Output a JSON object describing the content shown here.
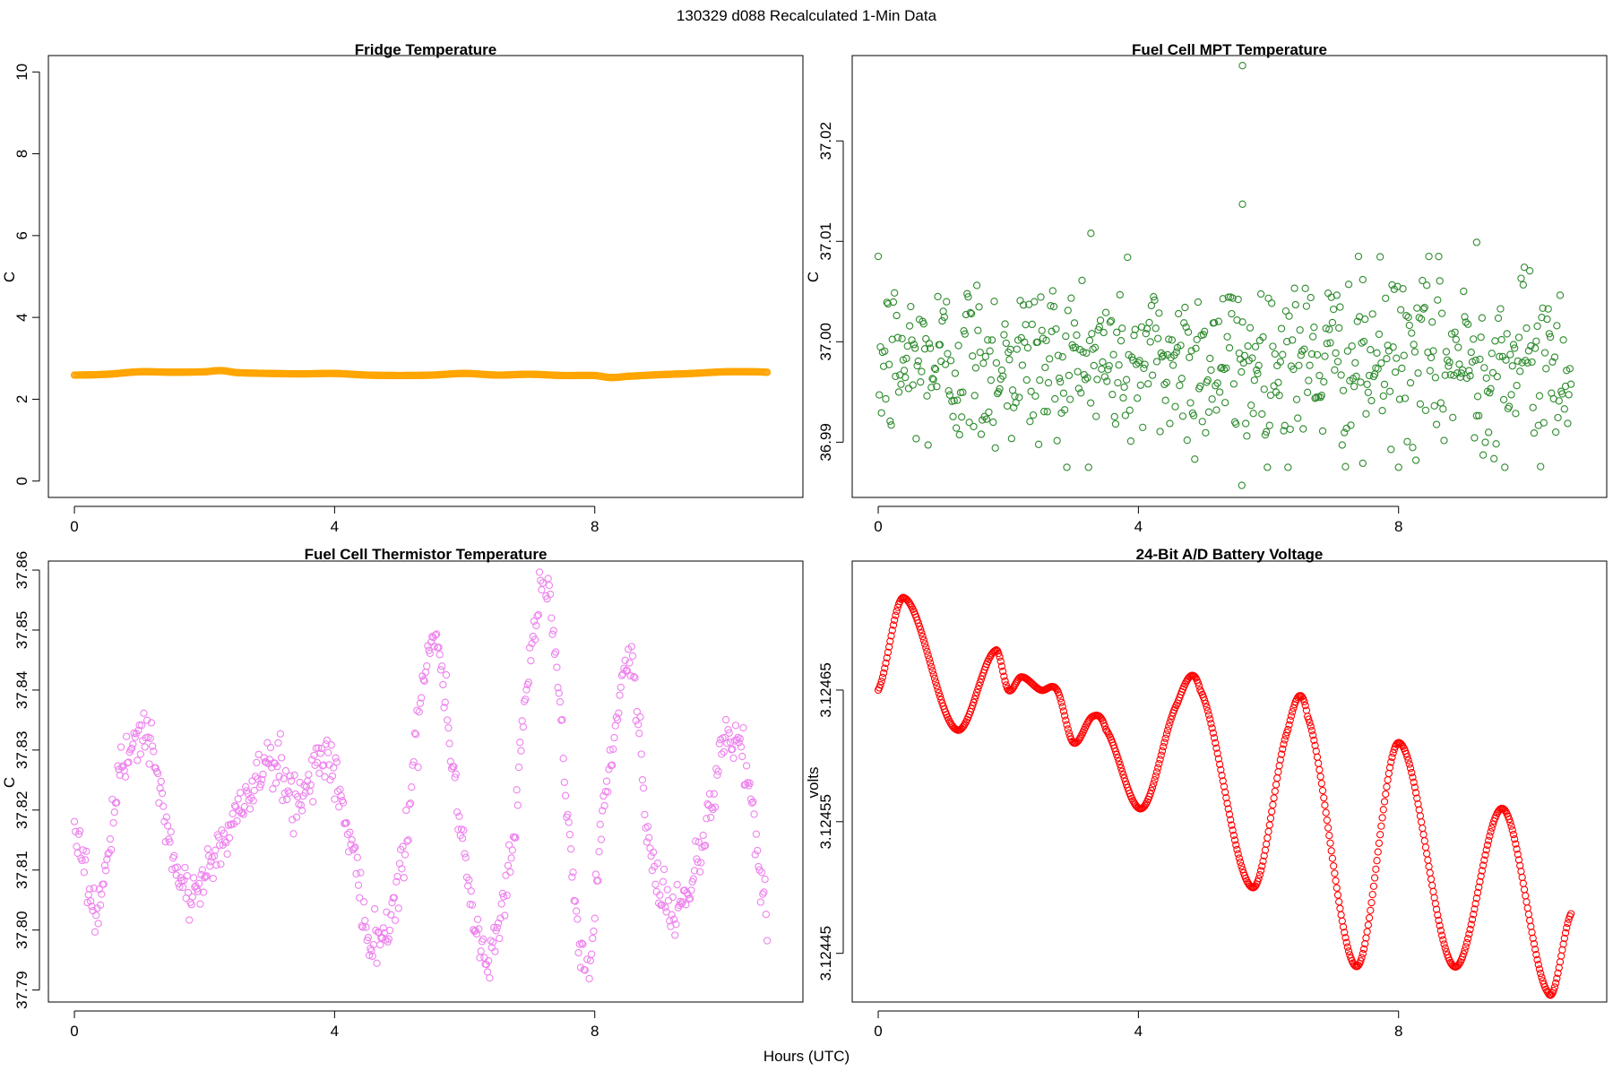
{
  "figure": {
    "title": "130329   d088   Recalculated 1-Min Data",
    "xlabel": "Hours (UTC)"
  },
  "chart_data": [
    {
      "id": "fridge",
      "type": "scatter",
      "title": "Fridge Temperature",
      "xlabel": "Hours (UTC)",
      "ylabel": "C",
      "color": "#FFA500",
      "xlim": [
        -0.4,
        11.2
      ],
      "ylim": [
        -0.4,
        10.4
      ],
      "xticks": [
        0,
        4,
        8
      ],
      "yticks": [
        0,
        2,
        4,
        6,
        8,
        10
      ],
      "ytick_labels": [
        "0",
        "2",
        "4",
        "6",
        "8",
        "10"
      ],
      "x": [
        0.0,
        0.5,
        1.0,
        1.5,
        2.0,
        2.25,
        2.5,
        3.0,
        3.5,
        4.0,
        4.5,
        5.0,
        5.5,
        6.0,
        6.5,
        7.0,
        7.5,
        8.0,
        8.25,
        8.5,
        9.0,
        9.5,
        10.0,
        10.5,
        10.65
      ],
      "y": [
        2.59,
        2.61,
        2.67,
        2.66,
        2.67,
        2.7,
        2.65,
        2.63,
        2.62,
        2.63,
        2.59,
        2.58,
        2.59,
        2.63,
        2.59,
        2.61,
        2.58,
        2.58,
        2.53,
        2.56,
        2.6,
        2.63,
        2.67,
        2.67,
        2.66
      ]
    },
    {
      "id": "mpt",
      "type": "scatter",
      "title": "Fuel Cell MPT Temperature",
      "xlabel": "Hours (UTC)",
      "ylabel": "C",
      "color": "#2E8B2E",
      "xlim": [
        -0.4,
        11.2
      ],
      "ylim": [
        36.9845,
        37.0285
      ],
      "xticks": [
        0,
        4,
        8
      ],
      "yticks": [
        36.99,
        37.0,
        37.01,
        37.02
      ],
      "ytick_labels": [
        "36.99",
        "37.00",
        "37.01",
        "37.02"
      ],
      "mean": 36.998,
      "sd": 0.0045,
      "n": 640,
      "outliers": [
        {
          "x": 5.6,
          "y": 37.0275
        },
        {
          "x": 5.6,
          "y": 37.0137
        },
        {
          "x": 3.27,
          "y": 37.0108
        },
        {
          "x": 9.2,
          "y": 37.0099
        },
        {
          "x": 5.59,
          "y": 36.9857
        },
        {
          "x": 7.45,
          "y": 36.9879
        }
      ]
    },
    {
      "id": "thermistor",
      "type": "scatter",
      "title": "Fuel Cell Thermistor Temperature",
      "xlabel": "Hours (UTC)",
      "ylabel": "C",
      "color": "#EE82EE",
      "xlim": [
        -0.4,
        11.2
      ],
      "ylim": [
        37.788,
        37.8615
      ],
      "xticks": [
        0,
        4,
        8
      ],
      "yticks": [
        37.79,
        37.8,
        37.81,
        37.82,
        37.83,
        37.84,
        37.85,
        37.86
      ],
      "ytick_labels": [
        "37.79",
        "37.80",
        "37.81",
        "37.82",
        "37.83",
        "37.84",
        "37.85",
        "37.86"
      ],
      "x": [
        0.0,
        0.35,
        0.75,
        1.1,
        1.65,
        2.3,
        3.0,
        3.4,
        3.9,
        4.3,
        4.6,
        5.05,
        5.5,
        5.95,
        6.3,
        6.7,
        7.1,
        7.3,
        7.85,
        8.1,
        8.55,
        8.85,
        9.3,
        9.65,
        10.1,
        10.4,
        10.65
      ],
      "y": [
        37.818,
        37.804,
        37.827,
        37.832,
        37.807,
        37.815,
        37.828,
        37.822,
        37.829,
        37.812,
        37.798,
        37.812,
        37.849,
        37.817,
        37.796,
        37.812,
        37.852,
        37.853,
        37.792,
        37.818,
        37.845,
        37.812,
        37.804,
        37.815,
        37.833,
        37.822,
        37.801
      ],
      "noise_sd": 0.0022
    },
    {
      "id": "battery",
      "type": "scatter",
      "title": "24-Bit A/D Battery Voltage",
      "xlabel": "Hours (UTC)",
      "ylabel": "volts",
      "color": "#FF0000",
      "xlim": [
        -0.4,
        11.2
      ],
      "ylim": [
        3.124413,
        3.124748
      ],
      "xticks": [
        0,
        4,
        8
      ],
      "yticks": [
        3.12445,
        3.12455,
        3.12465
      ],
      "ytick_labels": [
        "3.12445",
        "3.12455",
        "3.12465"
      ],
      "x": [
        0.0,
        0.4,
        1.2,
        1.8,
        2.0,
        2.2,
        2.5,
        2.75,
        3.0,
        3.3,
        3.5,
        4.05,
        4.6,
        4.95,
        5.75,
        6.3,
        6.6,
        7.35,
        8.0,
        8.85,
        9.6,
        10.3,
        10.65
      ],
      "y": [
        3.12465,
        3.12472,
        3.12462,
        3.12468,
        3.12465,
        3.12466,
        3.12465,
        3.12465,
        3.12461,
        3.12463,
        3.12462,
        3.12456,
        3.12464,
        3.12465,
        3.1245,
        3.12462,
        3.12463,
        3.12444,
        3.12461,
        3.12444,
        3.12456,
        3.12442,
        3.12448
      ]
    }
  ]
}
